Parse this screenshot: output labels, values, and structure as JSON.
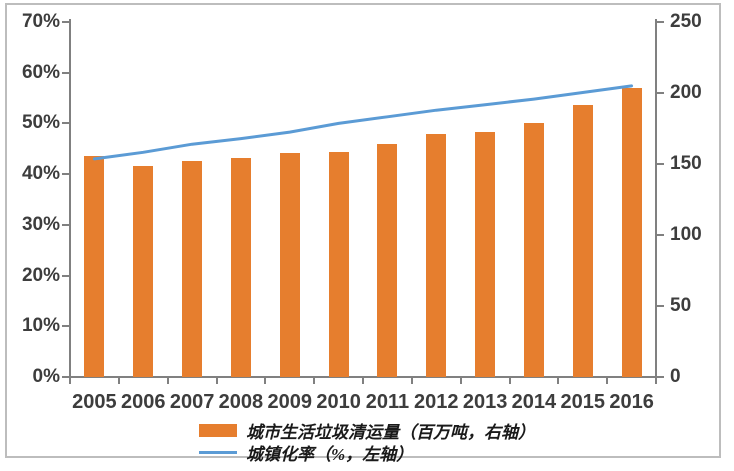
{
  "chart_data": {
    "type": "combo",
    "categories": [
      "2005",
      "2006",
      "2007",
      "2008",
      "2009",
      "2010",
      "2011",
      "2012",
      "2013",
      "2014",
      "2015",
      "2016"
    ],
    "series": [
      {
        "name": "城市生活垃圾清运量（百万吨，右轴）",
        "type": "bar",
        "axis": "right",
        "color": "#E67E2E",
        "values": [
          155.8,
          148.4,
          152.1,
          154.3,
          157.4,
          158.1,
          164.0,
          170.8,
          172.4,
          178.6,
          191.4,
          203.6
        ]
      },
      {
        "name": "城镇化率（%，左轴）",
        "type": "line",
        "axis": "left",
        "color": "#5B9BD5",
        "values": [
          43.0,
          44.3,
          45.9,
          47.0,
          48.3,
          50.0,
          51.3,
          52.6,
          53.7,
          54.8,
          56.1,
          57.4
        ]
      }
    ],
    "left_axis": {
      "min": 0,
      "max": 70,
      "step": 10,
      "tick_labels": [
        "0%",
        "10%",
        "20%",
        "30%",
        "40%",
        "50%",
        "60%",
        "70%"
      ]
    },
    "right_axis": {
      "min": 0,
      "max": 250,
      "step": 50,
      "tick_labels": [
        "0",
        "50",
        "100",
        "150",
        "200",
        "250"
      ]
    },
    "legend_position": "bottom",
    "grid": false,
    "colors": {
      "axis_line": "#808080",
      "tick_text": "#3d3d3d",
      "frame_border": "#bdbdbd",
      "background": "#ffffff"
    }
  }
}
